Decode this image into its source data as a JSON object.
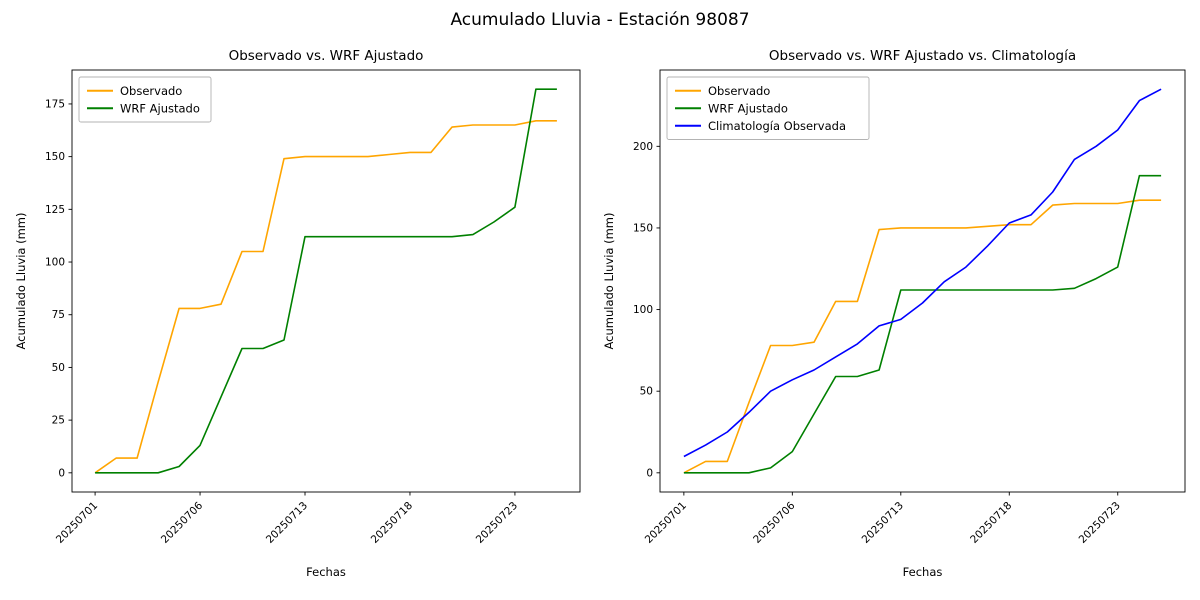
{
  "figure": {
    "title": "Acumulado Lluvia - Estación 98087",
    "background": "#ffffff"
  },
  "colors": {
    "observado": "#FFA500",
    "wrf_ajustado": "#008000",
    "climatologia": "#0000FF",
    "axes": "#000000",
    "legend_border": "#b3b3b3"
  },
  "chart_data": [
    {
      "type": "line",
      "title": "Observado vs. WRF Ajustado",
      "xlabel": "Fechas",
      "ylabel": "Acumulado Lluvia (mm)",
      "grid": false,
      "legend_position": "upper left",
      "x_tick_positions": [
        0,
        5,
        10,
        15,
        20
      ],
      "x_tick_labels": [
        "20250701",
        "20250706",
        "20250713",
        "20250718",
        "20250723"
      ],
      "y_ticks": [
        0,
        25,
        50,
        75,
        100,
        125,
        150,
        175
      ],
      "xlim": [
        -1.1,
        23.1
      ],
      "ylim": [
        -9.1,
        191.1
      ],
      "series": [
        {
          "name": "Observado",
          "color": "#FFA500",
          "values": [
            0,
            7,
            7,
            43,
            78,
            78,
            80,
            105,
            105,
            149,
            150,
            150,
            150,
            150,
            151,
            152,
            152,
            164,
            165,
            165,
            165,
            167,
            167
          ]
        },
        {
          "name": "WRF Ajustado",
          "color": "#008000",
          "values": [
            0,
            0,
            0,
            0,
            3,
            13,
            36,
            59,
            59,
            63,
            112,
            112,
            112,
            112,
            112,
            112,
            112,
            112,
            113,
            119,
            126,
            182,
            182
          ]
        }
      ]
    },
    {
      "type": "line",
      "title": "Observado vs. WRF Ajustado vs. Climatología",
      "xlabel": "Fechas",
      "ylabel": "Acumulado Lluvia (mm)",
      "grid": false,
      "legend_position": "upper left",
      "x_tick_positions": [
        0,
        5,
        10,
        15,
        20
      ],
      "x_tick_labels": [
        "20250701",
        "20250706",
        "20250713",
        "20250718",
        "20250723"
      ],
      "y_ticks": [
        0,
        50,
        100,
        150,
        200
      ],
      "xlim": [
        -1.1,
        23.1
      ],
      "ylim": [
        -11.75,
        246.75
      ],
      "series": [
        {
          "name": "Observado",
          "color": "#FFA500",
          "values": [
            0,
            7,
            7,
            43,
            78,
            78,
            80,
            105,
            105,
            149,
            150,
            150,
            150,
            150,
            151,
            152,
            152,
            164,
            165,
            165,
            165,
            167,
            167
          ]
        },
        {
          "name": "WRF Ajustado",
          "color": "#008000",
          "values": [
            0,
            0,
            0,
            0,
            3,
            13,
            36,
            59,
            59,
            63,
            112,
            112,
            112,
            112,
            112,
            112,
            112,
            112,
            113,
            119,
            126,
            182,
            182
          ]
        },
        {
          "name": "Climatología Observada",
          "color": "#0000FF",
          "values": [
            10,
            17,
            25,
            37,
            50,
            57,
            63,
            71,
            79,
            90,
            94,
            104,
            117,
            126,
            139,
            153,
            158,
            172,
            192,
            200,
            210,
            228,
            235
          ]
        }
      ]
    }
  ]
}
